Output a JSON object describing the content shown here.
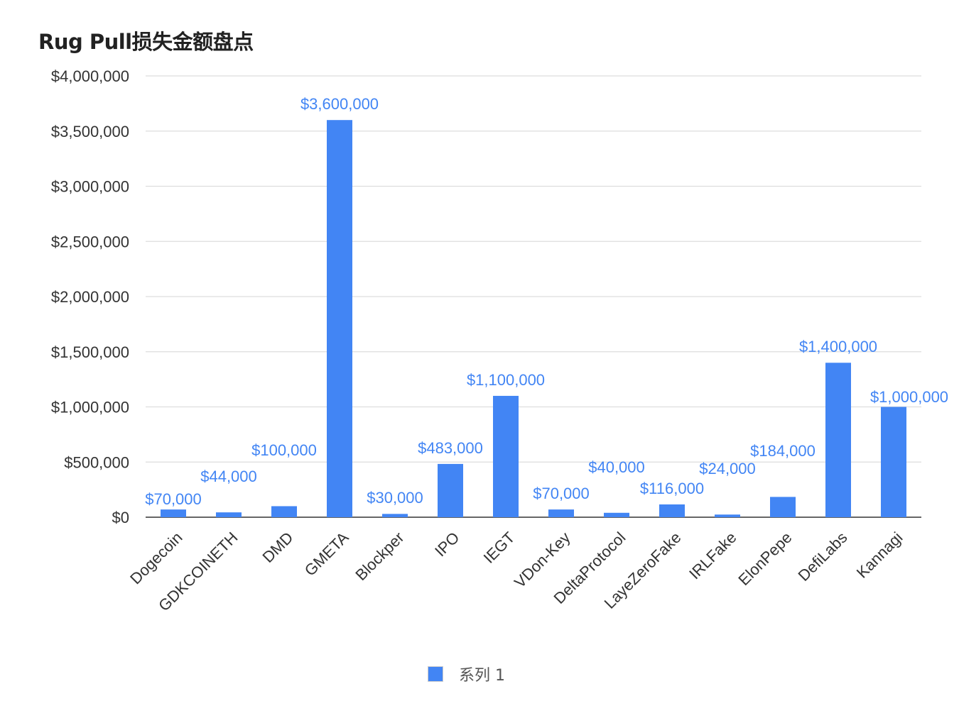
{
  "chart_data": {
    "type": "bar",
    "title": "Rug Pull损失金额盘点",
    "xlabel": "",
    "ylabel": "",
    "ylim": [
      0,
      4000000
    ],
    "yticks": [
      0,
      500000,
      1000000,
      1500000,
      2000000,
      2500000,
      3000000,
      3500000,
      4000000
    ],
    "ytick_labels": [
      "$0",
      "$500,000",
      "$1,000,000",
      "$1,500,000",
      "$2,000,000",
      "$2,500,000",
      "$3,000,000",
      "$3,500,000",
      "$4,000,000"
    ],
    "categories": [
      "Dogecoin",
      "GDKCOINETH",
      "DMD",
      "GMETA",
      "Blockper",
      "IPO",
      "IEGT",
      "VDon-Key",
      "DeltaProtocol",
      "LayeZeroFake",
      "IRLFake",
      "ElonPepe",
      "DefiLabs",
      "Kannagi"
    ],
    "series": [
      {
        "name": "系列 1",
        "color": "#4285f4",
        "values": [
          70000,
          44000,
          100000,
          3600000,
          30000,
          483000,
          1100000,
          70000,
          40000,
          116000,
          24000,
          184000,
          1400000,
          1000000
        ],
        "data_labels": [
          "$70,000",
          "$44,000",
          "$100,000",
          "$3,600,000",
          "$30,000",
          "$483,000",
          "$1,100,000",
          "$70,000",
          "$40,000",
          "$116,000",
          "$24,000",
          "$184,000",
          "$1,400,000",
          "$1,000,000"
        ]
      }
    ],
    "grid": true,
    "legend_position": "bottom"
  }
}
